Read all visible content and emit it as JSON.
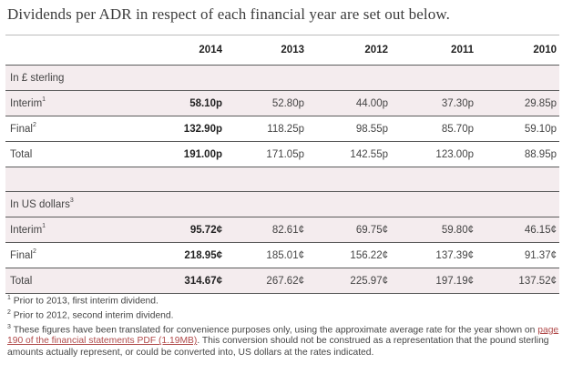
{
  "title": "Dividends per ADR in respect of each financial year are set out below.",
  "years": [
    "2014",
    "2013",
    "2012",
    "2011",
    "2010"
  ],
  "sections": [
    {
      "heading": "In £ sterling",
      "rows": [
        {
          "label": "Interim",
          "sup": "1",
          "values": [
            "58.10p",
            "52.80p",
            "44.00p",
            "37.30p",
            "29.85p"
          ]
        },
        {
          "label": "Final",
          "sup": "2",
          "values": [
            "132.90p",
            "118.25p",
            "98.55p",
            "85.70p",
            "59.10p"
          ]
        },
        {
          "label": "Total",
          "sup": "",
          "values": [
            "191.00p",
            "171.05p",
            "142.55p",
            "123.00p",
            "88.95p"
          ]
        }
      ]
    },
    {
      "heading": "In US dollars",
      "heading_sup": "3",
      "rows": [
        {
          "label": "Interim",
          "sup": "1",
          "values": [
            "95.72¢",
            "82.61¢",
            "69.75¢",
            "59.80¢",
            "46.15¢"
          ]
        },
        {
          "label": "Final",
          "sup": "2",
          "values": [
            "218.95¢",
            "185.01¢",
            "156.22¢",
            "137.39¢",
            "91.37¢"
          ]
        },
        {
          "label": "Total",
          "sup": "",
          "values": [
            "314.67¢",
            "267.62¢",
            "225.97¢",
            "197.19¢",
            "137.52¢"
          ]
        }
      ]
    }
  ],
  "footnotes": {
    "fn1_sup": "1",
    "fn1": " Prior to 2013, first interim dividend.",
    "fn2_sup": "2",
    "fn2": " Prior to 2012, second interim dividend.",
    "fn3_sup": "3",
    "fn3_before": " These figures have been translated for convenience purposes only, using the approximate average rate for the year shown on ",
    "fn3_link": "page 190 of the financial statements PDF (1.19MB)",
    "fn3_after": ". This conversion should not be construed as a representation that the pound sterling amounts actually represent, or could be converted into, US dollars at the rates indicated."
  }
}
